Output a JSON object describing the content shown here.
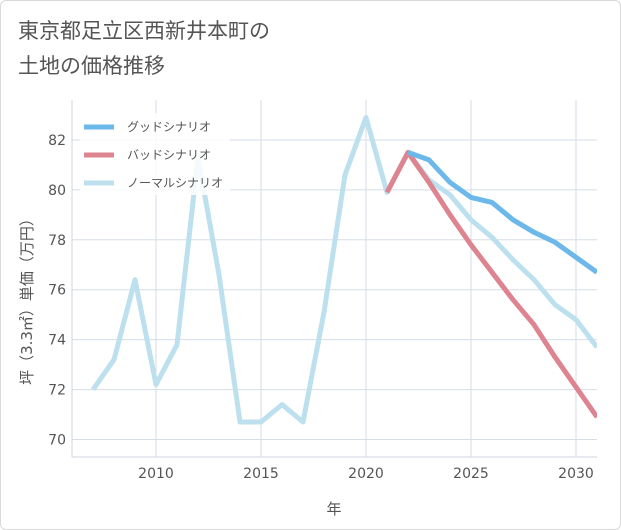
{
  "title_lines": [
    "東京都足立区西新井本町の",
    "土地の価格推移"
  ],
  "colors": {
    "good": "#6cb8ea",
    "bad": "#dd8490",
    "normal": "#bde0ee",
    "grid": "#d5dde6",
    "text": "#555555"
  },
  "chart_data": {
    "type": "line",
    "xlabel": "年",
    "ylabel": "坪（3.3㎡）単価（万円）",
    "xlim": [
      2006,
      2031
    ],
    "ylim": [
      69.3,
      83.6
    ],
    "xticks": [
      2010,
      2015,
      2020,
      2025,
      2030
    ],
    "yticks": [
      70,
      72,
      74,
      76,
      78,
      80,
      82
    ],
    "series": [
      {
        "key": "normal",
        "name": "ノーマルシナリオ",
        "x": [
          2007,
          2008,
          2009,
          2010,
          2011,
          2012,
          2013,
          2014,
          2015,
          2016,
          2017,
          2018,
          2019,
          2020,
          2021,
          2022,
          2023,
          2024,
          2025,
          2026,
          2027,
          2028,
          2029,
          2030,
          2031
        ],
        "y": [
          72.0,
          73.2,
          76.4,
          72.2,
          73.8,
          81.3,
          76.6,
          70.7,
          70.7,
          71.4,
          70.7,
          75.1,
          80.6,
          82.9,
          79.9,
          81.5,
          80.4,
          79.8,
          78.8,
          78.1,
          77.2,
          76.4,
          75.4,
          74.8,
          73.7
        ]
      },
      {
        "key": "bad",
        "name": "バッドシナリオ",
        "x": [
          2021,
          2022,
          2023,
          2024,
          2025,
          2026,
          2027,
          2028,
          2029,
          2030,
          2031
        ],
        "y": [
          79.9,
          81.5,
          80.3,
          79.0,
          77.8,
          76.7,
          75.6,
          74.6,
          73.3,
          72.1,
          70.9
        ]
      },
      {
        "key": "good",
        "name": "グッドシナリオ",
        "x": [
          2022,
          2023,
          2024,
          2025,
          2026,
          2027,
          2028,
          2029,
          2030,
          2031
        ],
        "y": [
          81.5,
          81.2,
          80.3,
          79.7,
          79.5,
          78.8,
          78.3,
          77.9,
          77.3,
          76.7
        ]
      }
    ],
    "legend": [
      {
        "key": "good",
        "name": "グッドシナリオ"
      },
      {
        "key": "bad",
        "name": "バッドシナリオ"
      },
      {
        "key": "normal",
        "name": "ノーマルシナリオ"
      }
    ],
    "legend_position": "top-left"
  }
}
